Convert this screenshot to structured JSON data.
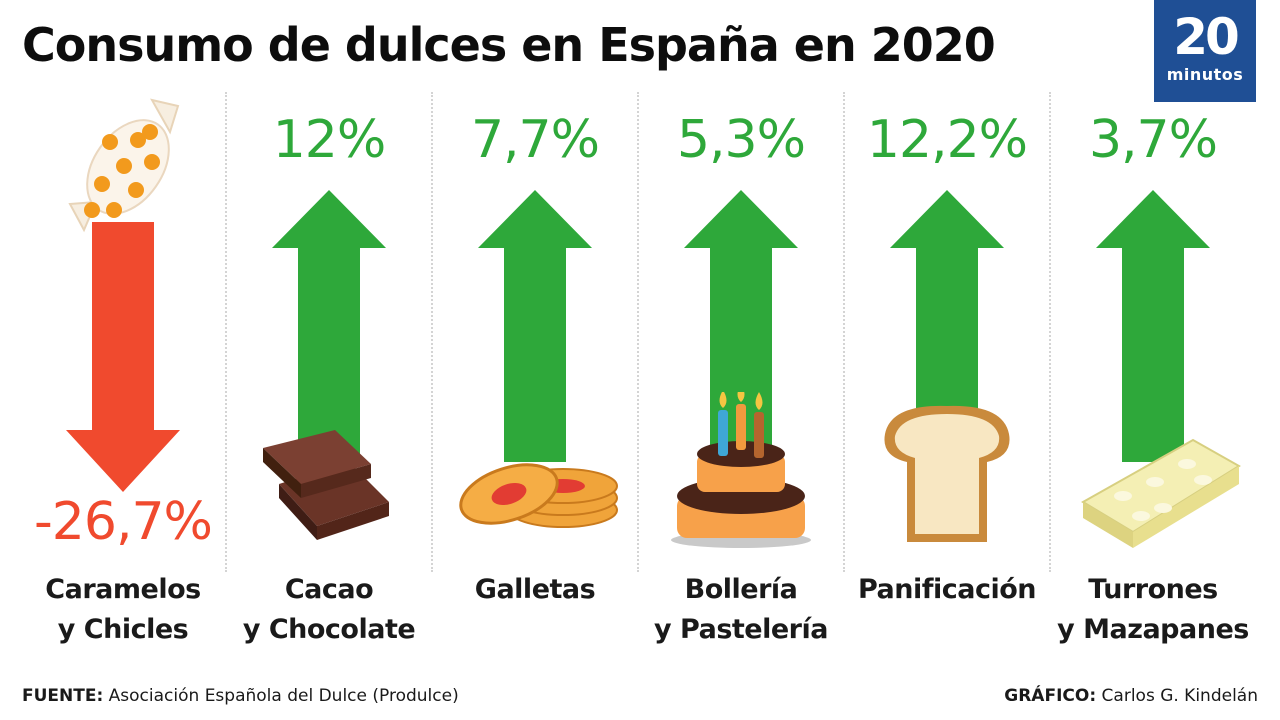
{
  "title": "Consumo de dulces en España en 2020",
  "logo": {
    "number": "20",
    "word": "minutos"
  },
  "chart_data": {
    "type": "bar",
    "categories": [
      [
        "Caramelos",
        "y Chicles"
      ],
      [
        "Cacao",
        "y Chocolate"
      ],
      [
        "Galletas"
      ],
      [
        "Bollería",
        "y Pastelería"
      ],
      [
        "Panificación"
      ],
      [
        "Turrones",
        "y Mazapanes"
      ]
    ],
    "values": [
      -26.7,
      12,
      7.7,
      5.3,
      12.2,
      3.7
    ],
    "value_labels": [
      "-26,7%",
      "12%",
      "7,7%",
      "5,3%",
      "12,2%",
      "3,7%"
    ],
    "unit": "%",
    "colors": {
      "positive": "#2ea83a",
      "negative": "#f04a2e"
    },
    "icons": [
      "candy-icon",
      "chocolate-icon",
      "cookies-icon",
      "cake-icon",
      "bread-icon",
      "turron-icon"
    ]
  },
  "footer": {
    "source_label": "FUENTE:",
    "source_text": " Asociación Española del Dulce (Produlce)",
    "credit_label": "GRÁFICO:",
    "credit_text": " Carlos G. Kindelán"
  }
}
